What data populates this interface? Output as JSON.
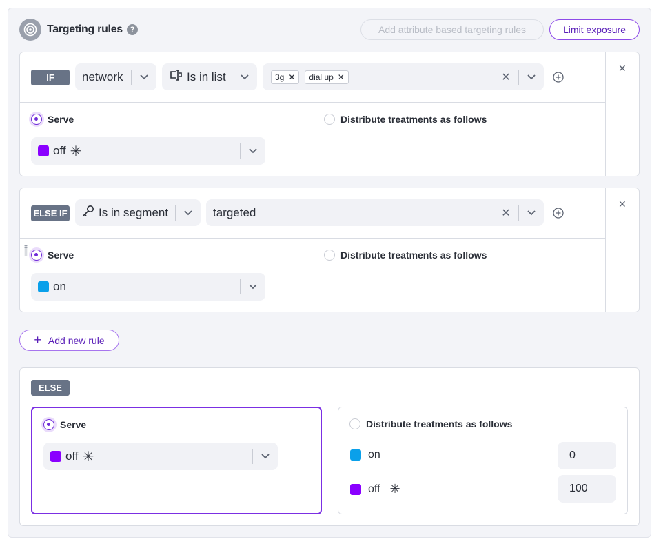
{
  "header": {
    "title": "Targeting rules",
    "help_icon": "question-circle-icon",
    "add_attribute_button": "Add attribute based targeting rules",
    "limit_exposure_button": "Limit exposure"
  },
  "colors": {
    "accent": "#7b2fe3",
    "on": "#0aa0ea",
    "off": "#8a00ff"
  },
  "rules": [
    {
      "badge": "IF",
      "attribute": "network",
      "matcher": "Is in list",
      "values": [
        "3g",
        "dial up"
      ],
      "serve_label": "Serve",
      "distribute_label": "Distribute treatments as follows",
      "serve_value": "off",
      "serve_default": true,
      "mode": "serve"
    },
    {
      "badge": "ELSE IF",
      "matcher": "Is in segment",
      "value": "targeted",
      "serve_label": "Serve",
      "distribute_label": "Distribute treatments as follows",
      "serve_value": "on",
      "mode": "serve"
    }
  ],
  "add_rule_button": "Add new rule",
  "else": {
    "badge": "ELSE",
    "serve_label": "Serve",
    "serve_value": "off",
    "distribute_label": "Distribute treatments as follows",
    "mode": "serve",
    "treatments": [
      {
        "name": "on",
        "value": "0"
      },
      {
        "name": "off",
        "value": "100",
        "default": true
      }
    ]
  }
}
